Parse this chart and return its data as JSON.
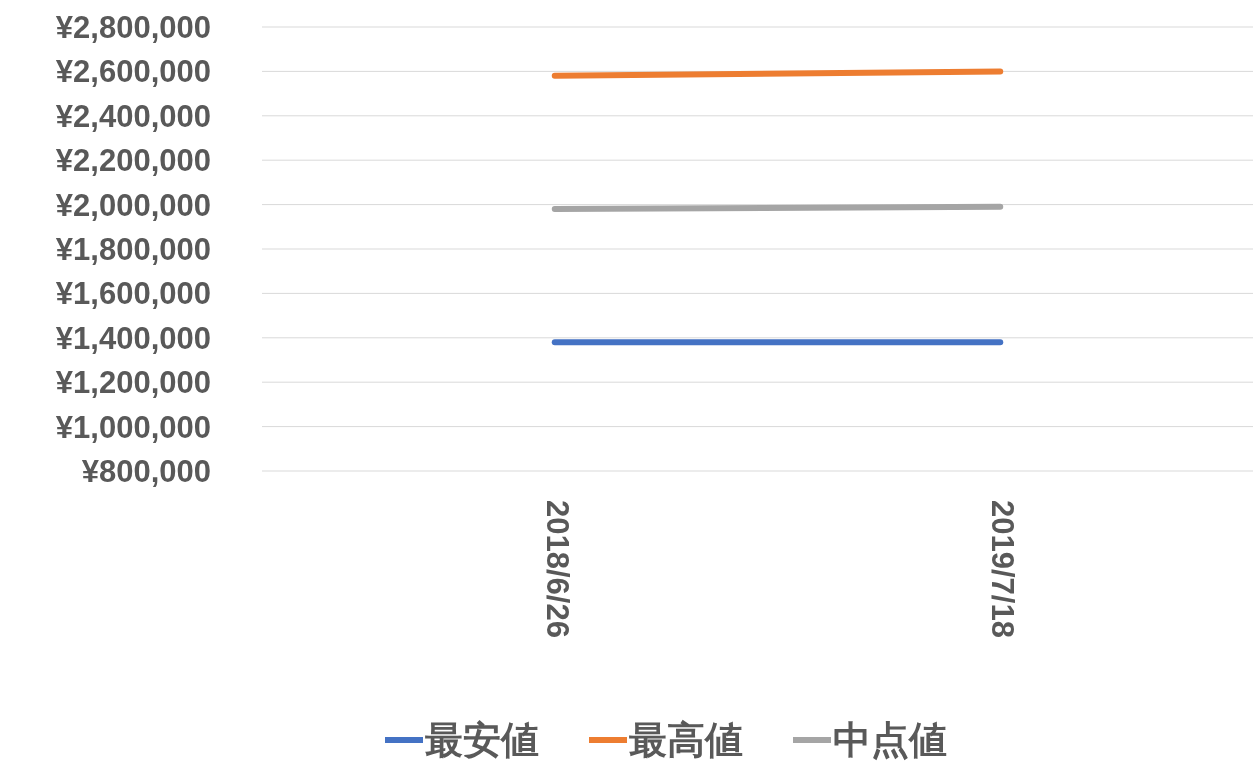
{
  "chart_data": {
    "type": "line",
    "categories": [
      "2018/6/26",
      "2019/7/18"
    ],
    "series": [
      {
        "name": "最安値",
        "color": "#4472c4",
        "values": [
          1380000,
          1380000
        ]
      },
      {
        "name": "最高値",
        "color": "#ed7d31",
        "values": [
          2580000,
          2600000
        ]
      },
      {
        "name": "中点値",
        "color": "#a5a5a5",
        "values": [
          1980000,
          1990000
        ]
      }
    ],
    "ylim": [
      800000,
      2800000
    ],
    "yticks": [
      {
        "value": 800000,
        "label": "¥800,000"
      },
      {
        "value": 1000000,
        "label": "¥1,000,000"
      },
      {
        "value": 1200000,
        "label": "¥1,200,000"
      },
      {
        "value": 1400000,
        "label": "¥1,400,000"
      },
      {
        "value": 1600000,
        "label": "¥1,600,000"
      },
      {
        "value": 1800000,
        "label": "¥1,800,000"
      },
      {
        "value": 2000000,
        "label": "¥2,000,000"
      },
      {
        "value": 2200000,
        "label": "¥2,200,000"
      },
      {
        "value": 2400000,
        "label": "¥2,400,000"
      },
      {
        "value": 2600000,
        "label": "¥2,600,000"
      },
      {
        "value": 2800000,
        "label": "¥2,800,000"
      }
    ],
    "grid": "y",
    "legend": "bottom"
  }
}
